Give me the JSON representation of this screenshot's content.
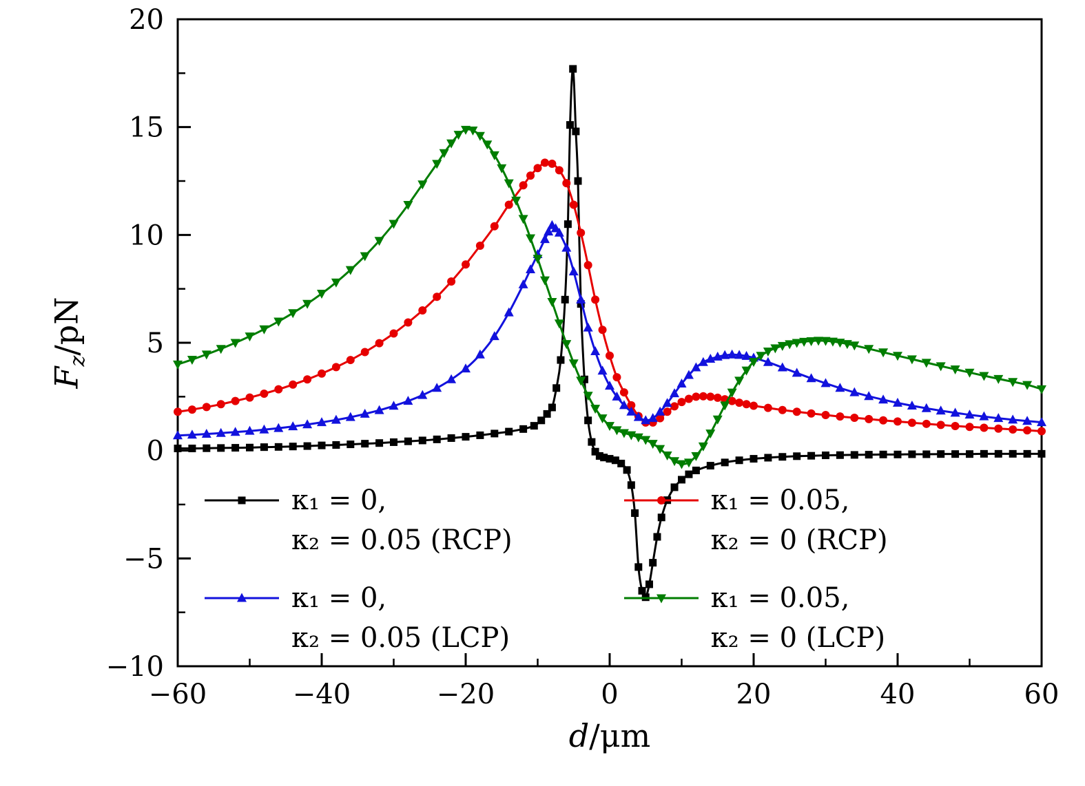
{
  "chart_data": {
    "type": "line",
    "title": "",
    "xlabel": "d/μm",
    "ylabel": "Fz/pN",
    "xlabel_parts": {
      "symbol": "d",
      "unit": "/μm"
    },
    "ylabel_parts": {
      "symbol": "F",
      "subscript": "z",
      "unit": "/pN"
    },
    "xlim": [
      -60,
      60
    ],
    "ylim": [
      -10,
      20
    ],
    "grid": false,
    "legend_position": "inside-bottom two-column",
    "xticks": [
      {
        "v": -60,
        "label": "−60"
      },
      {
        "v": -40,
        "label": "−40"
      },
      {
        "v": -20,
        "label": "−20"
      },
      {
        "v": 0,
        "label": "0"
      },
      {
        "v": 20,
        "label": "20"
      },
      {
        "v": 40,
        "label": "40"
      },
      {
        "v": 60,
        "label": "60"
      }
    ],
    "yticks": [
      {
        "v": -10,
        "label": "−10"
      },
      {
        "v": -5,
        "label": "−5"
      },
      {
        "v": 0,
        "label": "0"
      },
      {
        "v": 5,
        "label": "5"
      },
      {
        "v": 10,
        "label": "10"
      },
      {
        "v": 15,
        "label": "15"
      },
      {
        "v": 20,
        "label": "20"
      }
    ],
    "xminor": [
      -50,
      -30,
      -10,
      10,
      30,
      50
    ],
    "yminor": [
      -7.5,
      -2.5,
      2.5,
      7.5,
      12.5,
      17.5
    ],
    "series": [
      {
        "id": "k1-0-k2-0.05-RCP",
        "marker": "square",
        "color": "#000000",
        "legend_line1": "κ₁ = 0,",
        "legend_line2": "κ₂ = 0.05 (RCP)",
        "x": [
          -60,
          -58,
          -56,
          -54,
          -52,
          -50,
          -48,
          -46,
          -44,
          -42,
          -40,
          -38,
          -36,
          -34,
          -32,
          -30,
          -28,
          -26,
          -24,
          -22,
          -20,
          -18,
          -16,
          -14,
          -12,
          -10.5,
          -9.5,
          -8.7,
          -8,
          -7.4,
          -6.8,
          -6.2,
          -5.8,
          -5.5,
          -5.1,
          -4.7,
          -4.4,
          -4,
          -3.5,
          -3,
          -2.5,
          -2,
          -1.4,
          -0.8,
          0,
          0.8,
          1.6,
          2.4,
          3,
          3.5,
          4,
          4.5,
          5,
          5.5,
          6,
          6.6,
          7.2,
          8,
          9,
          10,
          11,
          12,
          14,
          16,
          18,
          20,
          22,
          24,
          26,
          28,
          30,
          32,
          34,
          36,
          38,
          40,
          42,
          44,
          46,
          48,
          50,
          52,
          54,
          56,
          58,
          60
        ],
        "y": [
          0.1,
          0.1,
          0.11,
          0.12,
          0.13,
          0.14,
          0.16,
          0.17,
          0.19,
          0.21,
          0.24,
          0.26,
          0.29,
          0.32,
          0.35,
          0.39,
          0.43,
          0.47,
          0.52,
          0.58,
          0.64,
          0.71,
          0.79,
          0.88,
          1.0,
          1.15,
          1.4,
          1.7,
          2.0,
          2.9,
          4.2,
          7.0,
          10.5,
          15.1,
          17.7,
          14.8,
          12.5,
          6.8,
          3.3,
          1.4,
          0.4,
          -0.05,
          -0.25,
          -0.32,
          -0.38,
          -0.45,
          -0.6,
          -0.9,
          -1.6,
          -2.9,
          -5.4,
          -6.5,
          -6.8,
          -6.2,
          -5.2,
          -4.0,
          -3.1,
          -2.3,
          -1.7,
          -1.35,
          -1.1,
          -0.92,
          -0.7,
          -0.55,
          -0.45,
          -0.38,
          -0.33,
          -0.29,
          -0.26,
          -0.24,
          -0.22,
          -0.21,
          -0.2,
          -0.19,
          -0.18,
          -0.18,
          -0.17,
          -0.17,
          -0.16,
          -0.16,
          -0.16,
          -0.15,
          -0.15,
          -0.15,
          -0.15,
          -0.15
        ]
      },
      {
        "id": "k1-0.05-k2-0-RCP",
        "marker": "circle",
        "color": "#e60000",
        "legend_line1": "κ₁ = 0.05,",
        "legend_line2": "κ₂ = 0 (RCP)",
        "x": [
          -60,
          -58,
          -56,
          -54,
          -52,
          -50,
          -48,
          -46,
          -44,
          -42,
          -40,
          -38,
          -36,
          -34,
          -32,
          -30,
          -28,
          -26,
          -24,
          -22,
          -20,
          -18,
          -16,
          -14,
          -12,
          -11,
          -10,
          -9,
          -8,
          -7,
          -6,
          -5,
          -4,
          -3,
          -2,
          -1,
          0,
          1,
          2,
          3,
          4,
          5,
          6,
          7,
          8,
          9,
          10,
          11,
          12,
          13,
          14,
          15,
          16,
          17,
          18,
          19,
          20,
          22,
          24,
          26,
          28,
          30,
          32,
          34,
          36,
          38,
          40,
          42,
          44,
          46,
          48,
          50,
          52,
          54,
          56,
          58,
          60
        ],
        "y": [
          1.8,
          1.9,
          2.02,
          2.15,
          2.3,
          2.46,
          2.64,
          2.84,
          3.06,
          3.3,
          3.57,
          3.87,
          4.2,
          4.57,
          4.98,
          5.43,
          5.94,
          6.5,
          7.13,
          7.84,
          8.63,
          9.5,
          10.4,
          11.4,
          12.3,
          12.75,
          13.1,
          13.35,
          13.3,
          13.0,
          12.4,
          11.4,
          10.1,
          8.6,
          7.0,
          5.6,
          4.4,
          3.4,
          2.7,
          2.1,
          1.6,
          1.3,
          1.3,
          1.5,
          1.8,
          2.05,
          2.25,
          2.4,
          2.5,
          2.52,
          2.5,
          2.45,
          2.38,
          2.3,
          2.22,
          2.15,
          2.08,
          1.98,
          1.88,
          1.8,
          1.72,
          1.65,
          1.58,
          1.52,
          1.46,
          1.4,
          1.35,
          1.29,
          1.24,
          1.19,
          1.14,
          1.1,
          1.06,
          1.02,
          0.98,
          0.94,
          0.9
        ]
      },
      {
        "id": "k1-0-k2-0.05-LCP",
        "marker": "triangle-up",
        "color": "#1212dd",
        "legend_line1": "κ₁ = 0,",
        "legend_line2": "κ₂ = 0.05 (LCP)",
        "x": [
          -60,
          -58,
          -56,
          -54,
          -52,
          -50,
          -48,
          -46,
          -44,
          -42,
          -40,
          -38,
          -36,
          -34,
          -32,
          -30,
          -28,
          -26,
          -24,
          -22,
          -20,
          -18,
          -16,
          -14,
          -12,
          -11,
          -10,
          -9,
          -8.5,
          -8,
          -7.5,
          -7,
          -6,
          -5,
          -4,
          -3,
          -2,
          -1,
          0,
          1,
          2,
          3,
          4,
          5,
          6,
          7,
          8,
          9,
          10,
          11,
          12,
          13,
          14,
          15,
          16,
          17,
          18,
          19,
          20,
          22,
          24,
          26,
          28,
          30,
          32,
          34,
          36,
          38,
          40,
          42,
          44,
          46,
          48,
          50,
          52,
          54,
          56,
          58,
          60
        ],
        "y": [
          0.7,
          0.73,
          0.77,
          0.81,
          0.86,
          0.91,
          0.97,
          1.04,
          1.12,
          1.21,
          1.31,
          1.42,
          1.55,
          1.7,
          1.87,
          2.07,
          2.3,
          2.57,
          2.9,
          3.3,
          3.8,
          4.45,
          5.3,
          6.4,
          7.7,
          8.4,
          9.1,
          9.8,
          10.15,
          10.45,
          10.3,
          10.1,
          9.4,
          8.3,
          7.0,
          5.7,
          4.6,
          3.7,
          3.0,
          2.5,
          2.1,
          1.8,
          1.55,
          1.4,
          1.5,
          1.8,
          2.2,
          2.65,
          3.1,
          3.5,
          3.85,
          4.1,
          4.25,
          4.35,
          4.42,
          4.45,
          4.43,
          4.38,
          4.3,
          4.1,
          3.85,
          3.6,
          3.35,
          3.12,
          2.9,
          2.7,
          2.52,
          2.36,
          2.21,
          2.08,
          1.96,
          1.85,
          1.75,
          1.66,
          1.58,
          1.5,
          1.43,
          1.37,
          1.31
        ]
      },
      {
        "id": "k1-0.05-k2-0-LCP",
        "marker": "triangle-down",
        "color": "#007d00",
        "legend_line1": "κ₁ = 0.05,",
        "legend_line2": "κ₂ = 0 (LCP)",
        "x": [
          -60,
          -58,
          -56,
          -54,
          -52,
          -50,
          -48,
          -46,
          -44,
          -42,
          -40,
          -38,
          -36,
          -34,
          -32,
          -30,
          -28,
          -26,
          -24,
          -23,
          -22,
          -21,
          -20,
          -19,
          -18,
          -17,
          -16,
          -15,
          -14,
          -13,
          -12,
          -11,
          -10,
          -9,
          -8,
          -7,
          -6,
          -5,
          -4,
          -3,
          -2,
          -1,
          0,
          1,
          2,
          3,
          4,
          5,
          6,
          7,
          8,
          9,
          10,
          11,
          12,
          13,
          14,
          15,
          16,
          17,
          18,
          19,
          20,
          21,
          22,
          23,
          24,
          25,
          26,
          27,
          28,
          29,
          30,
          31,
          32,
          33,
          34,
          36,
          38,
          40,
          42,
          44,
          46,
          48,
          50,
          52,
          54,
          56,
          58,
          60
        ],
        "y": [
          4.0,
          4.22,
          4.46,
          4.72,
          5.0,
          5.3,
          5.63,
          5.99,
          6.38,
          6.81,
          7.28,
          7.8,
          8.38,
          9.02,
          9.73,
          10.52,
          11.4,
          12.35,
          13.3,
          13.8,
          14.25,
          14.65,
          14.88,
          14.85,
          14.6,
          14.2,
          13.7,
          13.1,
          12.4,
          11.6,
          10.75,
          9.85,
          8.9,
          7.9,
          6.9,
          5.9,
          4.95,
          4.05,
          3.25,
          2.55,
          1.95,
          1.5,
          1.15,
          0.95,
          0.82,
          0.72,
          0.62,
          0.5,
          0.32,
          0.08,
          -0.22,
          -0.48,
          -0.62,
          -0.55,
          -0.25,
          0.2,
          0.8,
          1.45,
          2.1,
          2.7,
          3.25,
          3.72,
          4.12,
          4.4,
          4.6,
          4.75,
          4.86,
          4.94,
          5.0,
          5.05,
          5.08,
          5.1,
          5.09,
          5.06,
          5.01,
          4.95,
          4.88,
          4.72,
          4.56,
          4.4,
          4.24,
          4.08,
          3.92,
          3.77,
          3.62,
          3.47,
          3.33,
          3.19,
          3.05,
          2.85
        ]
      }
    ]
  }
}
